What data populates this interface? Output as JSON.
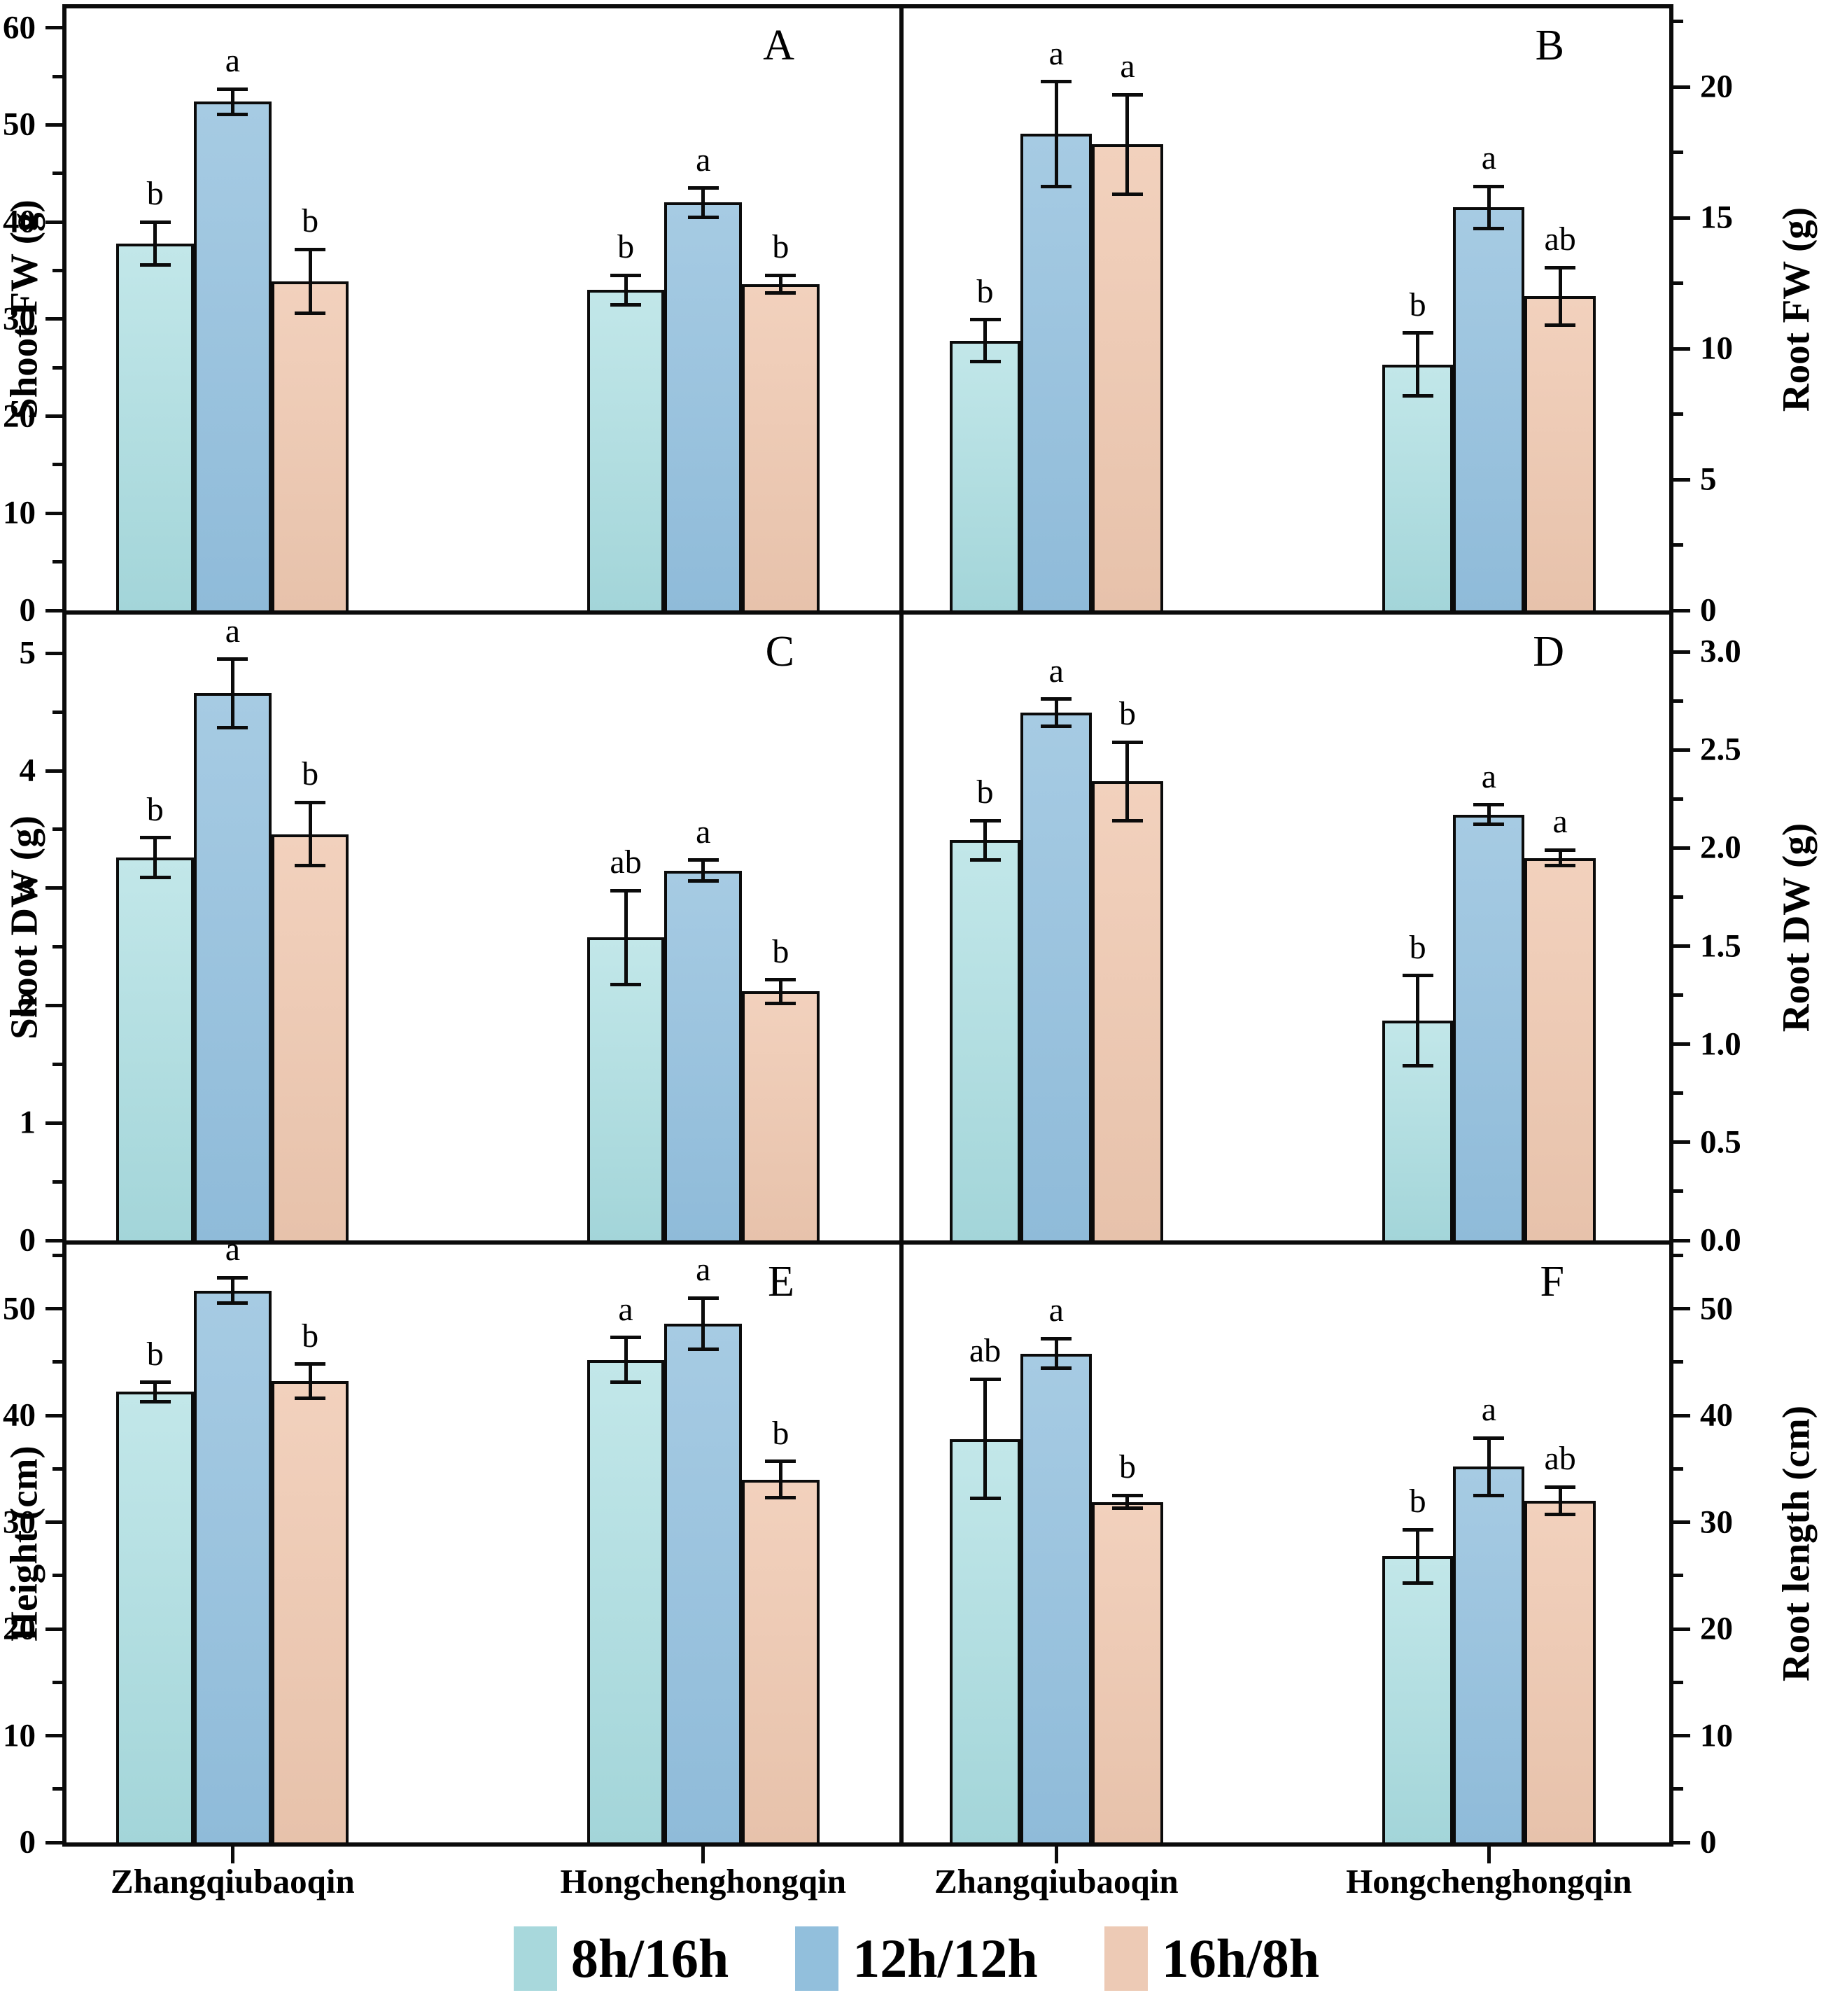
{
  "figure_title": "",
  "x_categories": [
    "Zhangqiubaoqin",
    "Hongchenghongqin"
  ],
  "legend": {
    "items": [
      {
        "label": "8h/16h",
        "color": "#a8d8dc"
      },
      {
        "label": "12h/12h",
        "color": "#92bfdc"
      },
      {
        "label": "16h/8h",
        "color": "#edcab5"
      }
    ]
  },
  "style": {
    "background": "#ffffff",
    "border_color": "#0b0b0b",
    "bar_colors": [
      "#a8d8dc",
      "#92bfdc",
      "#edcab5"
    ],
    "text_color": "#000000"
  },
  "chart_data": [
    {
      "id": "A",
      "panel_label": "A",
      "type": "bar",
      "axis_side": "left",
      "ylabel": "Shoot FW (g)",
      "ylim": [
        0,
        62
      ],
      "grid": false,
      "yticks": [
        0,
        10,
        20,
        30,
        40,
        50,
        60
      ],
      "ytick_labels": [
        "0",
        "10",
        "20",
        "30",
        "40",
        "50",
        "60"
      ],
      "minor_step": 5,
      "categories": [
        "Zhangqiubaoqin",
        "Hongchenghongqin"
      ],
      "series": [
        {
          "name": "8h/16h",
          "values": [
            37.8,
            33.0
          ],
          "errors": [
            2.2,
            1.5
          ],
          "sig": [
            "b",
            "b"
          ]
        },
        {
          "name": "12h/12h",
          "values": [
            52.4,
            42.0
          ],
          "errors": [
            1.3,
            1.5
          ],
          "sig": [
            "a",
            "a"
          ]
        },
        {
          "name": "16h/8h",
          "values": [
            33.9,
            33.6
          ],
          "errors": [
            3.3,
            0.9
          ],
          "sig": [
            "b",
            "b"
          ]
        }
      ]
    },
    {
      "id": "B",
      "panel_label": "B",
      "type": "bar",
      "axis_side": "right",
      "ylabel": "Root FW (g)",
      "ylim": [
        0,
        23
      ],
      "grid": false,
      "yticks": [
        0,
        5,
        10,
        15,
        20
      ],
      "ytick_labels": [
        "0",
        "5",
        "10",
        "15",
        "20"
      ],
      "minor_step": 2.5,
      "categories": [
        "Zhangqiubaoqin",
        "Hongchenghongqin"
      ],
      "series": [
        {
          "name": "8h/16h",
          "values": [
            10.3,
            9.4
          ],
          "errors": [
            0.8,
            1.2
          ],
          "sig": [
            "b",
            "b"
          ]
        },
        {
          "name": "12h/12h",
          "values": [
            18.2,
            15.4
          ],
          "errors": [
            2.0,
            0.8
          ],
          "sig": [
            "a",
            "a"
          ]
        },
        {
          "name": "16h/8h",
          "values": [
            17.8,
            12.0
          ],
          "errors": [
            1.9,
            1.1
          ],
          "sig": [
            "a",
            "ab"
          ]
        }
      ]
    },
    {
      "id": "C",
      "panel_label": "C",
      "type": "bar",
      "axis_side": "left",
      "ylabel": "Shoot DW (g)",
      "ylim": [
        0,
        5.33
      ],
      "grid": false,
      "yticks": [
        0,
        1,
        2,
        3,
        4,
        5
      ],
      "ytick_labels": [
        "0",
        "1",
        "2",
        "3",
        "4",
        "5"
      ],
      "minor_step": 0.5,
      "categories": [
        "Zhangqiubaoqin",
        "Hongchenghongqin"
      ],
      "series": [
        {
          "name": "8h/16h",
          "values": [
            3.26,
            2.58
          ],
          "errors": [
            0.17,
            0.4
          ],
          "sig": [
            "b",
            "ab"
          ]
        },
        {
          "name": "12h/12h",
          "values": [
            4.66,
            3.15
          ],
          "errors": [
            0.29,
            0.09
          ],
          "sig": [
            "a",
            "a"
          ]
        },
        {
          "name": "16h/8h",
          "values": [
            3.46,
            2.12
          ],
          "errors": [
            0.27,
            0.1
          ],
          "sig": [
            "b",
            "b"
          ]
        }
      ]
    },
    {
      "id": "D",
      "panel_label": "D",
      "type": "bar",
      "axis_side": "right",
      "ylabel": "Root DW (g)",
      "ylim": [
        0,
        3.19
      ],
      "grid": false,
      "yticks": [
        0,
        0.5,
        1.0,
        1.5,
        2.0,
        2.5,
        3.0
      ],
      "ytick_labels": [
        "0.0",
        "0.5",
        "1.0",
        "1.5",
        "2.0",
        "2.5",
        "3.0"
      ],
      "minor_step": 0.25,
      "categories": [
        "Zhangqiubaoqin",
        "Hongchenghongqin"
      ],
      "series": [
        {
          "name": "8h/16h",
          "values": [
            2.04,
            1.12
          ],
          "errors": [
            0.1,
            0.23
          ],
          "sig": [
            "b",
            "b"
          ]
        },
        {
          "name": "12h/12h",
          "values": [
            2.69,
            2.17
          ],
          "errors": [
            0.07,
            0.05
          ],
          "sig": [
            "a",
            "a"
          ]
        },
        {
          "name": "16h/8h",
          "values": [
            2.34,
            1.95
          ],
          "errors": [
            0.2,
            0.04
          ],
          "sig": [
            "b",
            "a"
          ]
        }
      ]
    },
    {
      "id": "E",
      "panel_label": "E",
      "type": "bar",
      "axis_side": "left",
      "ylabel": "Height (cm)",
      "ylim": [
        0,
        56
      ],
      "grid": false,
      "yticks": [
        0,
        10,
        20,
        30,
        40,
        50
      ],
      "ytick_labels": [
        "0",
        "10",
        "20",
        "30",
        "40",
        "50"
      ],
      "minor_step": 5,
      "categories": [
        "Zhangqiubaoqin",
        "Hongchenghongqin"
      ],
      "series": [
        {
          "name": "8h/16h",
          "values": [
            42.2,
            45.2
          ],
          "errors": [
            0.9,
            2.1
          ],
          "sig": [
            "b",
            "a"
          ]
        },
        {
          "name": "12h/12h",
          "values": [
            51.7,
            48.6
          ],
          "errors": [
            1.2,
            2.4
          ],
          "sig": [
            "a",
            "a"
          ]
        },
        {
          "name": "16h/8h",
          "values": [
            43.2,
            34.0
          ],
          "errors": [
            1.6,
            1.7
          ],
          "sig": [
            "b",
            "b"
          ]
        }
      ]
    },
    {
      "id": "F",
      "panel_label": "F",
      "type": "bar",
      "axis_side": "right",
      "ylabel": "Root length (cm)",
      "ylim": [
        0,
        56
      ],
      "grid": false,
      "yticks": [
        0,
        10,
        20,
        30,
        40,
        50
      ],
      "ytick_labels": [
        "0",
        "10",
        "20",
        "30",
        "40",
        "50"
      ],
      "minor_step": 5,
      "categories": [
        "Zhangqiubaoqin",
        "Hongchenghongqin"
      ],
      "series": [
        {
          "name": "8h/16h",
          "values": [
            37.8,
            26.8
          ],
          "errors": [
            5.6,
            2.5
          ],
          "sig": [
            "ab",
            "b"
          ]
        },
        {
          "name": "12h/12h",
          "values": [
            45.8,
            35.2
          ],
          "errors": [
            1.4,
            2.7
          ],
          "sig": [
            "a",
            "a"
          ]
        },
        {
          "name": "16h/8h",
          "values": [
            31.9,
            32.0
          ],
          "errors": [
            0.6,
            1.3
          ],
          "sig": [
            "b",
            "ab"
          ]
        }
      ]
    }
  ]
}
